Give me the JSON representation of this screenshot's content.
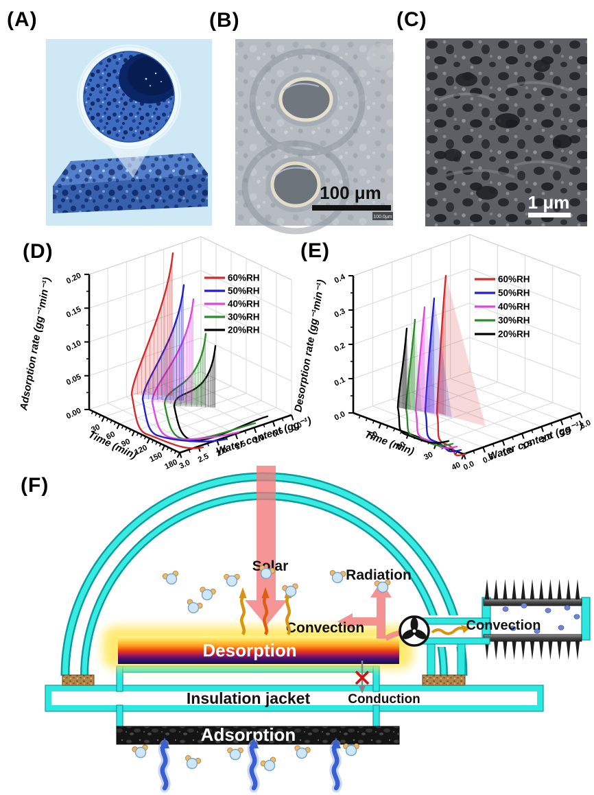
{
  "panels": {
    "a": {
      "label": "(A)",
      "content": "porous sorbent slab with magnified hollow porous sphere"
    },
    "b": {
      "label": "(B)",
      "scale_bar": "100 μm",
      "watermark": "100.0μm",
      "content": "micrograph of porous spheres with open cavities"
    },
    "c": {
      "label": "(C)",
      "scale_bar": "1 μm",
      "content": "SEM micrograph of microporous surface"
    },
    "d": {
      "label": "(D)"
    },
    "e": {
      "label": "(E)"
    },
    "f": {
      "label": "(F)"
    }
  },
  "chart_data": [
    {
      "panel": "D",
      "type": "line",
      "plot_style": "3d curves with drop-line mesh",
      "zlabel": "Adsorption rate (gg⁻¹min⁻¹)",
      "xlabel": "Time (min)",
      "ylabel": "Water content (gg⁻¹)",
      "x_ticks": [
        "30",
        "60",
        "90",
        "120",
        "150",
        "180"
      ],
      "y_ticks": [
        "3.0",
        "2.5",
        "2.0",
        "1.5",
        "1.0",
        "0.5",
        "0.0"
      ],
      "z_ticks": [
        "0.00",
        "0.05",
        "0.10",
        "0.15",
        "0.20"
      ],
      "xlim": [
        0,
        180
      ],
      "ylim": [
        0,
        3.0
      ],
      "zlim": [
        0,
        0.2
      ],
      "grid": true,
      "legend_position": "top-right",
      "series": [
        {
          "name": "60%RH",
          "color": "#d42a2a",
          "peak_rate": 0.205
        },
        {
          "name": "50%RH",
          "color": "#1f1fd0",
          "peak_rate": 0.165
        },
        {
          "name": "40%RH",
          "color": "#df46df",
          "peak_rate": 0.148
        },
        {
          "name": "30%RH",
          "color": "#2a8c2a",
          "peak_rate": 0.1
        },
        {
          "name": "20%RH",
          "color": "#000000",
          "peak_rate": 0.085
        }
      ]
    },
    {
      "panel": "E",
      "type": "line",
      "plot_style": "3d curves with drop-line mesh",
      "zlabel": "Desorption rate (gg⁻¹min⁻¹)",
      "xlabel": "Time (min)",
      "ylabel": "Water content (gg⁻¹)",
      "x_ticks": [
        "10",
        "20",
        "30",
        "40"
      ],
      "y_ticks": [
        "0.0",
        "0.5",
        "1.0",
        "1.5",
        "2.0",
        "2.5",
        "3.0"
      ],
      "z_ticks": [
        "0.0",
        "0.1",
        "0.2",
        "0.3",
        "0.4"
      ],
      "xlim": [
        0,
        40
      ],
      "ylim": [
        0,
        3.0
      ],
      "zlim": [
        0,
        0.4
      ],
      "grid": true,
      "legend_position": "top-right",
      "series": [
        {
          "name": "60%RH",
          "color": "#d42a2a",
          "peak_rate": 0.4
        },
        {
          "name": "50%RH",
          "color": "#1f1fd0",
          "peak_rate": 0.33
        },
        {
          "name": "40%RH",
          "color": "#df46df",
          "peak_rate": 0.3
        },
        {
          "name": "30%RH",
          "color": "#2a8c2a",
          "peak_rate": 0.26
        },
        {
          "name": "20%RH",
          "color": "#000000",
          "peak_rate": 0.23
        }
      ]
    }
  ],
  "schematic": {
    "labels": {
      "solar": "Solar",
      "radiation": "Radiation",
      "convection_inner": "Convection",
      "convection_outer": "Convection",
      "desorption": "Desorption",
      "insulation_jacket": "Insulation jacket",
      "conduction": "Conduction",
      "adsorption": "Adsorption"
    },
    "colors": {
      "dome": "#38ebe0",
      "heat_flow": "#f48a8a",
      "convection_wave": "#d89310",
      "water_vapor_arrow": "#3a5fd0",
      "blocked_conduction_x": "#d41010"
    }
  }
}
